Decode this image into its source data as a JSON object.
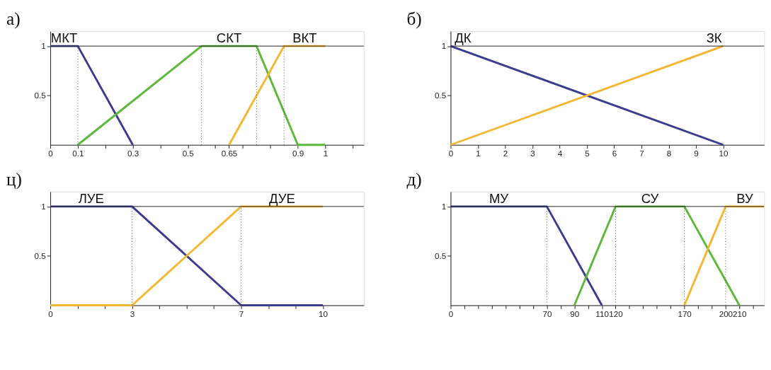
{
  "chart_data": [
    {
      "type": "line",
      "title": "а)",
      "xlim": [
        0,
        1.14
      ],
      "ylim": [
        0,
        1.15
      ],
      "xticks": [
        0,
        0.1,
        {
          "value": 0.2,
          "label": null
        },
        0.3,
        {
          "value": 0.4,
          "label": null
        },
        0.5,
        {
          "value": 0.6,
          "label": null
        },
        0.65,
        {
          "value": 0.7,
          "label": null
        },
        {
          "value": 0.8,
          "label": null
        },
        0.9,
        1,
        {
          "value": 1.1,
          "label": null
        }
      ],
      "yticks": [
        0.5,
        1
      ],
      "series": [
        {
          "name": "МКТ",
          "color": "#3b3c8f",
          "x": [
            0,
            0.1,
            0.3
          ],
          "values": [
            1,
            1,
            0
          ]
        },
        {
          "name": "СКТ",
          "color": "#5db83a",
          "x": [
            0.1,
            0.55,
            0.75,
            0.9,
            1
          ],
          "values": [
            0,
            1,
            1,
            0,
            0
          ]
        },
        {
          "name": "ВКТ",
          "color": "#f5b731",
          "x": [
            0.65,
            0.85,
            1
          ],
          "values": [
            0,
            1,
            1
          ]
        }
      ],
      "ref_lines": [
        {
          "axis": "y",
          "value": 1,
          "color": "#222222",
          "line_style": "solid"
        },
        {
          "axis": "x",
          "value": 0.1,
          "color": "#555555",
          "line_style": "dotted"
        },
        {
          "axis": "x",
          "value": 0.55,
          "color": "#555555",
          "line_style": "dotted"
        },
        {
          "axis": "x",
          "value": 0.75,
          "color": "#555555",
          "line_style": "dotted"
        },
        {
          "axis": "x",
          "value": 0.85,
          "color": "#555555",
          "line_style": "dotted"
        }
      ],
      "line_style": "solid",
      "marker": "none"
    },
    {
      "type": "line",
      "title": "б)",
      "xlim": [
        0,
        11.5
      ],
      "ylim": [
        0,
        1.15
      ],
      "xticks": [
        0,
        1,
        2,
        3,
        4,
        5,
        6,
        7,
        8,
        9,
        10
      ],
      "yticks": [
        0.5,
        1
      ],
      "series": [
        {
          "name": "ДК",
          "color": "#3b3c8f",
          "x": [
            0,
            10
          ],
          "values": [
            1,
            0
          ]
        },
        {
          "name": "ЗК",
          "color": "#f5b731",
          "x": [
            0,
            10
          ],
          "values": [
            0,
            1
          ]
        }
      ],
      "ref_lines": [
        {
          "axis": "y",
          "value": 1,
          "color": "#222222",
          "line_style": "solid"
        }
      ],
      "line_style": "solid",
      "marker": "none"
    },
    {
      "type": "line",
      "title": "ц)",
      "xlim": [
        0,
        11.5
      ],
      "ylim": [
        0,
        1.15
      ],
      "xticks": [
        0,
        {
          "value": 1,
          "label": null
        },
        {
          "value": 2,
          "label": null
        },
        3,
        {
          "value": 4,
          "label": null
        },
        {
          "value": 5,
          "label": null
        },
        {
          "value": 6,
          "label": null
        },
        7,
        {
          "value": 8,
          "label": null
        },
        {
          "value": 9,
          "label": null
        },
        10
      ],
      "yticks": [
        0.5,
        1
      ],
      "series": [
        {
          "name": "ЛУЕ",
          "color": "#3b3c8f",
          "x": [
            0,
            3,
            7,
            10
          ],
          "values": [
            1,
            1,
            0,
            0
          ]
        },
        {
          "name": "ДУЕ",
          "color": "#f5b731",
          "x": [
            0,
            3,
            7,
            10
          ],
          "values": [
            0,
            0,
            1,
            1
          ]
        }
      ],
      "ref_lines": [
        {
          "axis": "y",
          "value": 1,
          "color": "#222222",
          "line_style": "solid"
        },
        {
          "axis": "x",
          "value": 3,
          "color": "#555555",
          "line_style": "dotted"
        },
        {
          "axis": "x",
          "value": 7,
          "color": "#555555",
          "line_style": "dotted"
        }
      ],
      "line_style": "solid",
      "marker": "none"
    },
    {
      "type": "line",
      "title": "д)",
      "xlim": [
        0,
        228
      ],
      "ylim": [
        0,
        1.15
      ],
      "xticks": [
        0,
        {
          "value": 10,
          "label": null
        },
        {
          "value": 20,
          "label": null
        },
        {
          "value": 30,
          "label": null
        },
        {
          "value": 40,
          "label": null
        },
        {
          "value": 50,
          "label": null
        },
        {
          "value": 60,
          "label": null
        },
        70,
        {
          "value": 80,
          "label": null
        },
        90,
        {
          "value": 100,
          "label": null
        },
        110,
        120,
        {
          "value": 130,
          "label": null
        },
        {
          "value": 140,
          "label": null
        },
        {
          "value": 150,
          "label": null
        },
        {
          "value": 160,
          "label": null
        },
        170,
        {
          "value": 180,
          "label": null
        },
        {
          "value": 190,
          "label": null
        },
        200,
        210,
        {
          "value": 220,
          "label": null
        }
      ],
      "yticks": [
        0.5,
        1
      ],
      "series": [
        {
          "name": "МУ",
          "color": "#3b3c8f",
          "x": [
            0,
            70,
            110
          ],
          "values": [
            1,
            1,
            0
          ]
        },
        {
          "name": "СУ",
          "color": "#5db83a",
          "x": [
            90,
            120,
            170,
            210
          ],
          "values": [
            0,
            1,
            1,
            0
          ]
        },
        {
          "name": "ВУ",
          "color": "#f5b731",
          "x": [
            170,
            200,
            228
          ],
          "values": [
            0,
            1,
            1
          ]
        }
      ],
      "ref_lines": [
        {
          "axis": "y",
          "value": 1,
          "color": "#222222",
          "line_style": "solid"
        },
        {
          "axis": "x",
          "value": 70,
          "color": "#555555",
          "line_style": "dotted"
        },
        {
          "axis": "x",
          "value": 120,
          "color": "#555555",
          "line_style": "dotted"
        },
        {
          "axis": "x",
          "value": 170,
          "color": "#555555",
          "line_style": "dotted"
        },
        {
          "axis": "x",
          "value": 200,
          "color": "#555555",
          "line_style": "dotted"
        }
      ],
      "line_style": "solid",
      "marker": "none"
    }
  ]
}
